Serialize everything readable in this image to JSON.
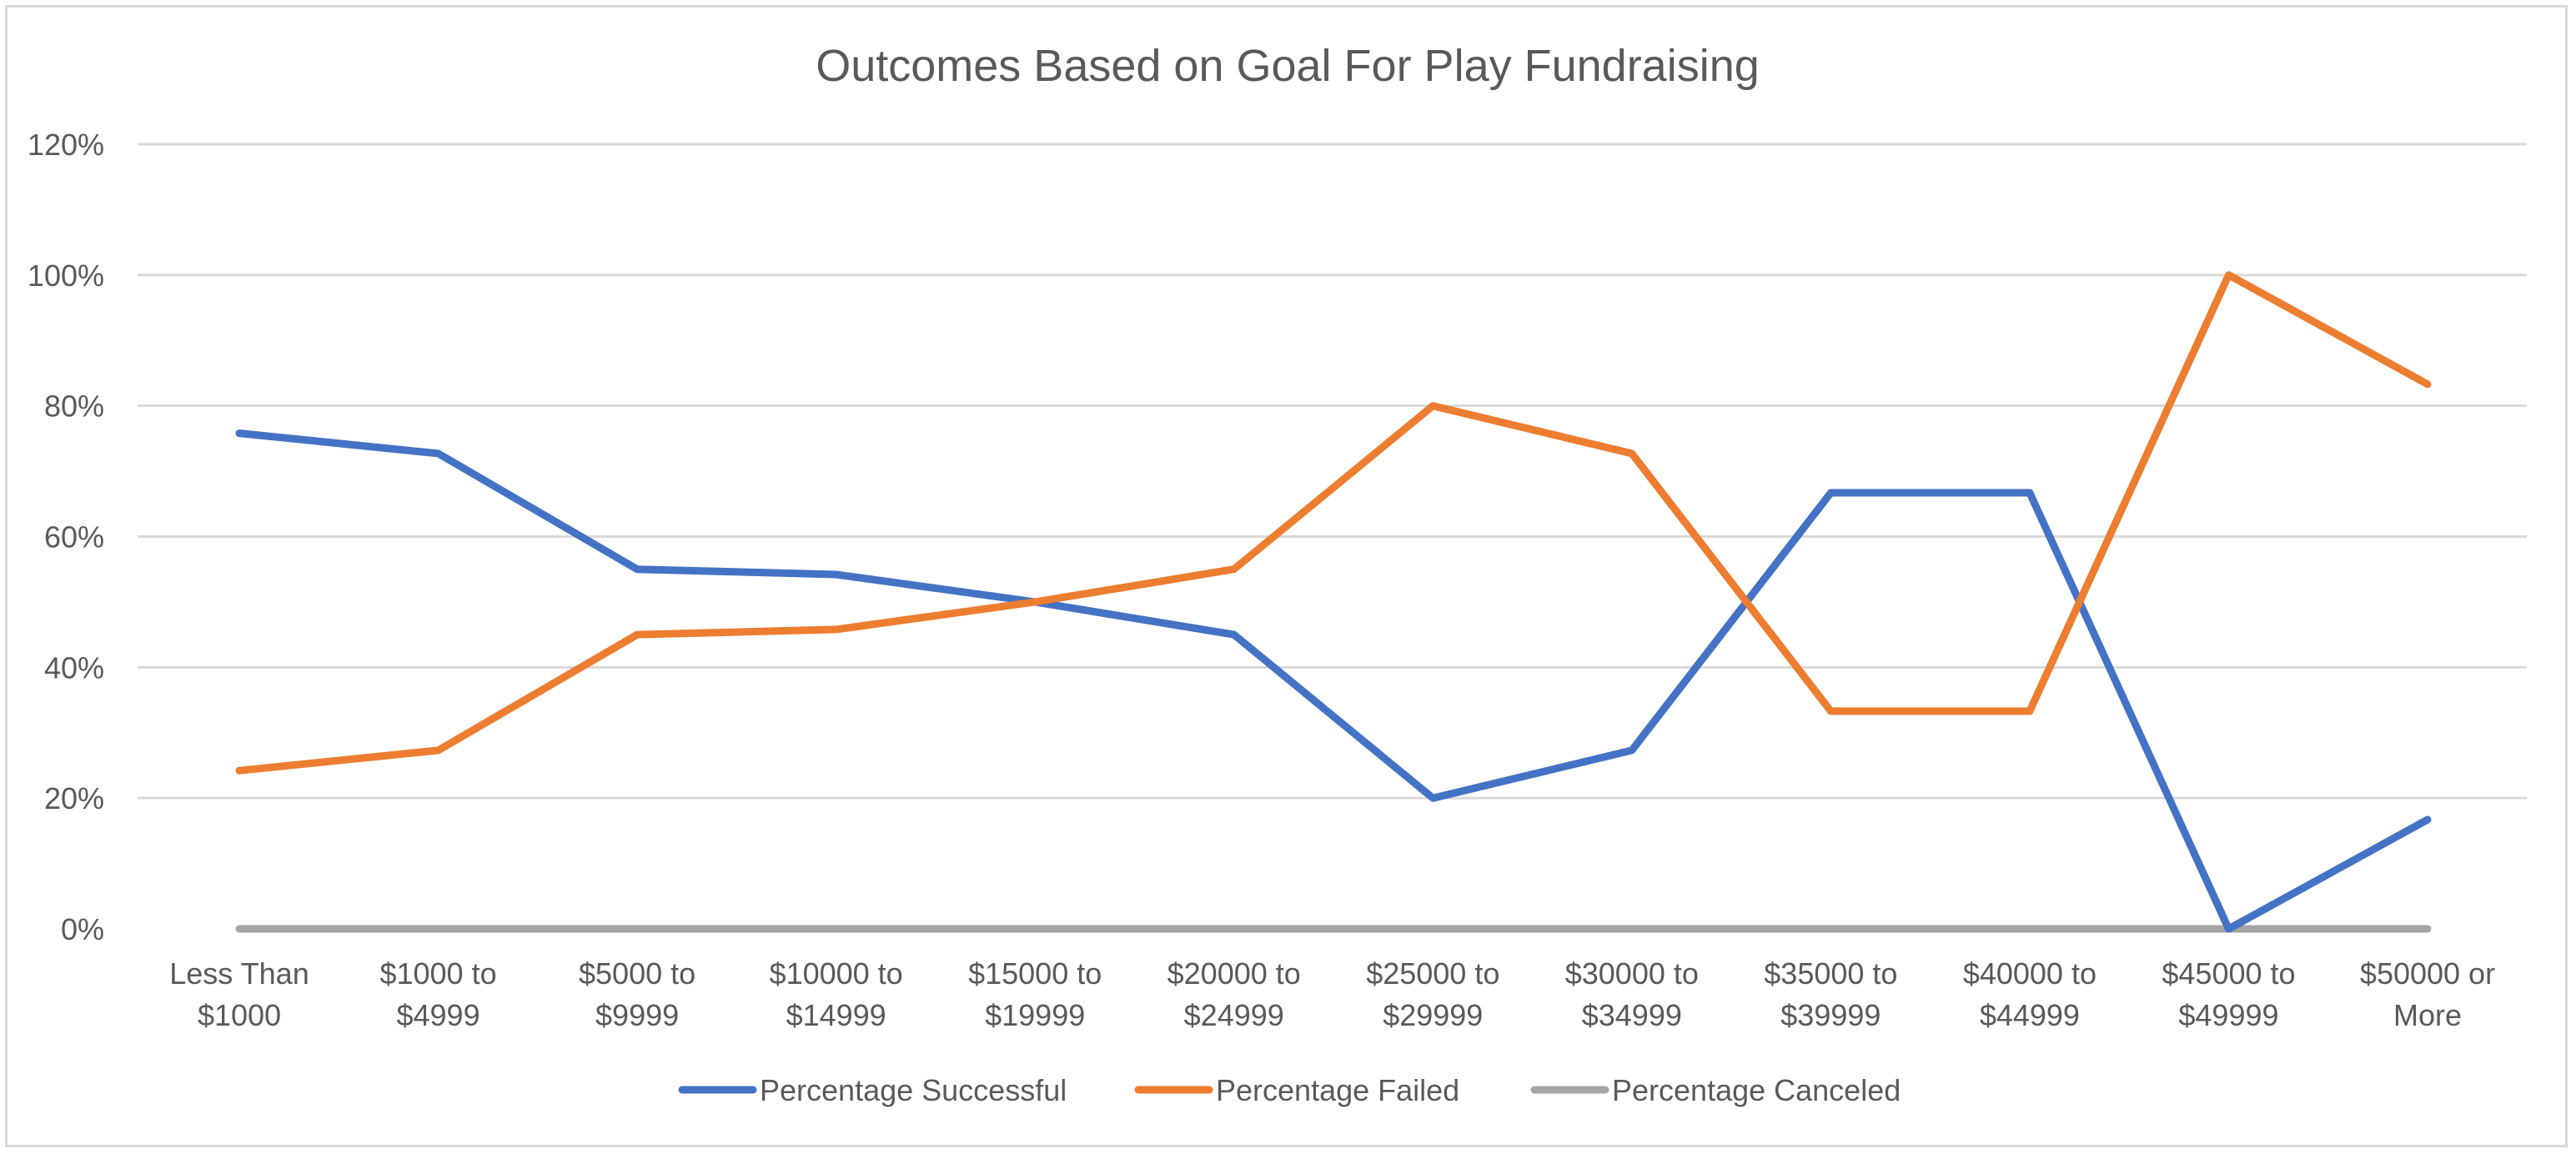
{
  "chart_data": {
    "type": "line",
    "title": "Outcomes Based on Goal For Play Fundraising",
    "xlabel": "",
    "ylabel": "",
    "categories": [
      [
        "Less Than",
        "$1000"
      ],
      [
        "$1000 to",
        "$4999"
      ],
      [
        "$5000 to",
        "$9999"
      ],
      [
        "$10000 to",
        "$14999"
      ],
      [
        "$15000 to",
        "$19999"
      ],
      [
        "$20000 to",
        "$24999"
      ],
      [
        "$25000 to",
        "$29999"
      ],
      [
        "$30000 to",
        "$34999"
      ],
      [
        "$35000 to",
        "$39999"
      ],
      [
        "$40000 to",
        "$44999"
      ],
      [
        "$45000 to",
        "$49999"
      ],
      [
        "$50000 or",
        "More"
      ]
    ],
    "ylim": [
      0,
      1.2
    ],
    "yticks": [
      0,
      0.2,
      0.4,
      0.6,
      0.8,
      1.0,
      1.2
    ],
    "ytick_labels": [
      "0%",
      "20%",
      "40%",
      "60%",
      "80%",
      "100%",
      "120%"
    ],
    "grid": true,
    "legend_position": "bottom",
    "series": [
      {
        "name": "Percentage Successful",
        "color": "#4472c4",
        "values": [
          0.758,
          0.727,
          0.55,
          0.542,
          0.5,
          0.45,
          0.2,
          0.273,
          0.667,
          0.667,
          0.0,
          0.167
        ]
      },
      {
        "name": "Percentage Failed",
        "color": "#ed7d31",
        "values": [
          0.242,
          0.273,
          0.45,
          0.458,
          0.5,
          0.55,
          0.8,
          0.727,
          0.333,
          0.333,
          1.0,
          0.833
        ]
      },
      {
        "name": "Percentage Canceled",
        "color": "#a5a5a5",
        "values": [
          0,
          0,
          0,
          0,
          0,
          0,
          0,
          0,
          0,
          0,
          0,
          0
        ]
      }
    ]
  }
}
